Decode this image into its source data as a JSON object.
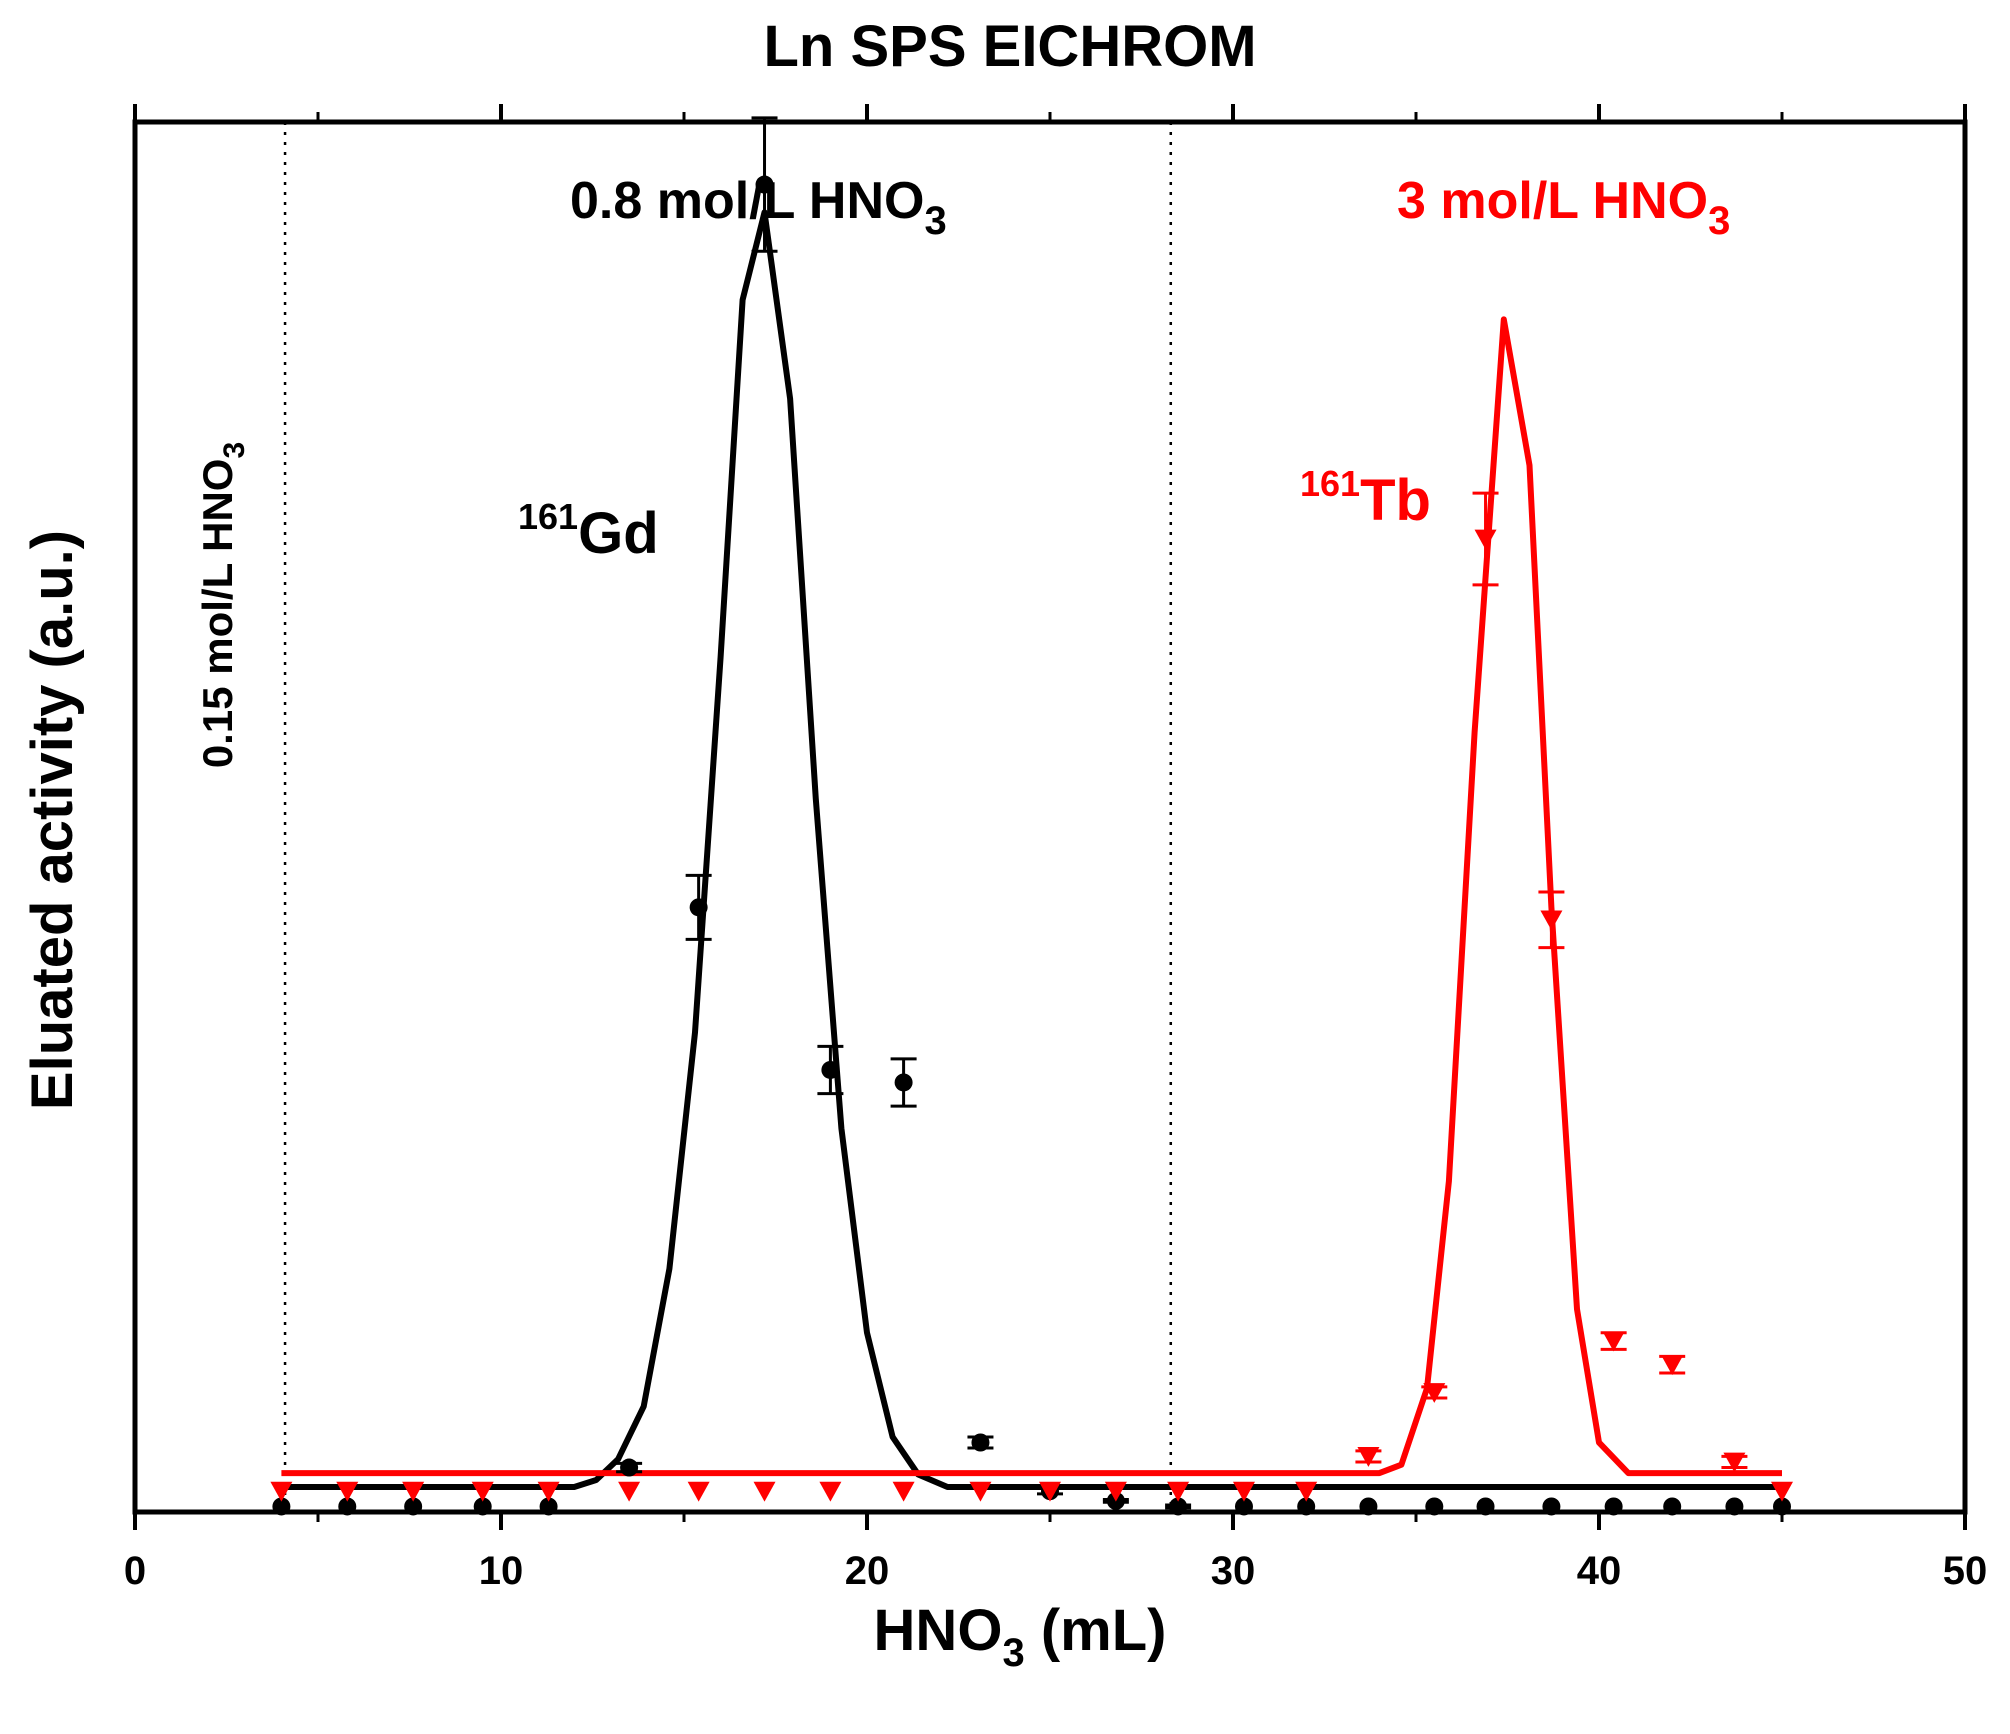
{
  "chart_data": {
    "type": "scatter",
    "title": "Ln SPS EICHROM",
    "xlabel": {
      "main": "HNO",
      "sub": "3",
      "unit": "(mL)"
    },
    "ylabel": "Eluated activity (a.u.)",
    "xlim": [
      0,
      50
    ],
    "ylim": [
      0,
      100
    ],
    "x_ticks": [
      0,
      10,
      20,
      30,
      40,
      50
    ],
    "x_tick_labels": [
      "0",
      "10",
      "20",
      "30",
      "40",
      "50"
    ],
    "y_ticks_visible": false,
    "phase_boundaries": [
      4.1,
      28.3
    ],
    "phase_labels": {
      "left": {
        "text": "0.15 mol/L HNO",
        "sub": "3"
      },
      "middle": {
        "text": "0.8 mol/L  HNO",
        "sub": "3"
      },
      "right": {
        "text": "3 mol/L  HNO",
        "sub": "3"
      }
    },
    "colors": {
      "gd": "#000000",
      "tb": "#ff0000",
      "axis": "#000000"
    },
    "series": [
      {
        "name": "161Gd",
        "label_sup": "161",
        "label_main": "Gd",
        "marker": "circle",
        "color": "#000000",
        "points": [
          {
            "x": 4.0,
            "y": 0.4,
            "err": 0
          },
          {
            "x": 5.8,
            "y": 0.4,
            "err": 0
          },
          {
            "x": 7.6,
            "y": 0.4,
            "err": 0
          },
          {
            "x": 9.5,
            "y": 0.4,
            "err": 0
          },
          {
            "x": 11.3,
            "y": 0.4,
            "err": 0
          },
          {
            "x": 13.5,
            "y": 3.2,
            "err": 0.3
          },
          {
            "x": 15.4,
            "y": 43.5,
            "err": 2.3
          },
          {
            "x": 17.2,
            "y": 95.5,
            "err": 4.8
          },
          {
            "x": 19.0,
            "y": 31.8,
            "err": 1.7
          },
          {
            "x": 21.0,
            "y": 30.9,
            "err": 1.7
          },
          {
            "x": 23.1,
            "y": 5.0,
            "err": 0.4
          },
          {
            "x": 25.0,
            "y": 1.5,
            "err": 0.2
          },
          {
            "x": 26.8,
            "y": 0.8,
            "err": 0.1
          },
          {
            "x": 28.5,
            "y": 0.4,
            "err": 0.1
          },
          {
            "x": 30.3,
            "y": 0.4,
            "err": 0
          },
          {
            "x": 32.0,
            "y": 0.4,
            "err": 0
          },
          {
            "x": 33.7,
            "y": 0.4,
            "err": 0
          },
          {
            "x": 35.5,
            "y": 0.4,
            "err": 0
          },
          {
            "x": 36.9,
            "y": 0.4,
            "err": 0
          },
          {
            "x": 38.7,
            "y": 0.4,
            "err": 0
          },
          {
            "x": 40.4,
            "y": 0.4,
            "err": 0
          },
          {
            "x": 42.0,
            "y": 0.4,
            "err": 0
          },
          {
            "x": 43.7,
            "y": 0.4,
            "err": 0
          },
          {
            "x": 45.0,
            "y": 0.4,
            "err": 0
          }
        ],
        "fit": [
          [
            4.0,
            1.8
          ],
          [
            12.0,
            1.8
          ],
          [
            12.6,
            2.3
          ],
          [
            13.2,
            3.8
          ],
          [
            13.9,
            7.6
          ],
          [
            14.6,
            17.5
          ],
          [
            15.3,
            34.5
          ],
          [
            16.0,
            61.5
          ],
          [
            16.6,
            87.2
          ],
          [
            17.2,
            93.5
          ],
          [
            17.9,
            80.1
          ],
          [
            18.6,
            51.3
          ],
          [
            19.3,
            27.6
          ],
          [
            20.0,
            12.9
          ],
          [
            20.7,
            5.4
          ],
          [
            21.4,
            2.7
          ],
          [
            22.2,
            1.8
          ],
          [
            45.0,
            1.8
          ]
        ]
      },
      {
        "name": "161Tb",
        "label_sup": "161",
        "label_main": "Tb",
        "marker": "triangle-down",
        "color": "#ff0000",
        "points": [
          {
            "x": 4.0,
            "y": 1.5,
            "err": 0
          },
          {
            "x": 5.8,
            "y": 1.5,
            "err": 0
          },
          {
            "x": 7.6,
            "y": 1.5,
            "err": 0
          },
          {
            "x": 9.5,
            "y": 1.5,
            "err": 0
          },
          {
            "x": 11.3,
            "y": 1.5,
            "err": 0
          },
          {
            "x": 13.5,
            "y": 1.5,
            "err": 0
          },
          {
            "x": 15.4,
            "y": 1.5,
            "err": 0
          },
          {
            "x": 17.2,
            "y": 1.5,
            "err": 0
          },
          {
            "x": 19.0,
            "y": 1.5,
            "err": 0
          },
          {
            "x": 21.0,
            "y": 1.5,
            "err": 0
          },
          {
            "x": 23.1,
            "y": 1.5,
            "err": 0
          },
          {
            "x": 25.0,
            "y": 1.5,
            "err": 0
          },
          {
            "x": 26.8,
            "y": 1.5,
            "err": 0
          },
          {
            "x": 28.5,
            "y": 1.5,
            "err": 0
          },
          {
            "x": 30.3,
            "y": 1.5,
            "err": 0
          },
          {
            "x": 32.0,
            "y": 1.5,
            "err": 0
          },
          {
            "x": 33.7,
            "y": 4.0,
            "err": 0.4
          },
          {
            "x": 35.5,
            "y": 8.6,
            "err": 0.4
          },
          {
            "x": 36.9,
            "y": 70.0,
            "err": 3.3
          },
          {
            "x": 38.7,
            "y": 42.6,
            "err": 2.0
          },
          {
            "x": 40.4,
            "y": 12.3,
            "err": 0.6
          },
          {
            "x": 42.0,
            "y": 10.6,
            "err": 0.6
          },
          {
            "x": 43.7,
            "y": 3.6,
            "err": 0.4
          },
          {
            "x": 45.0,
            "y": 1.5,
            "err": 0
          }
        ],
        "fit": [
          [
            4.0,
            2.8
          ],
          [
            34.0,
            2.8
          ],
          [
            34.6,
            3.4
          ],
          [
            35.3,
            8.9
          ],
          [
            35.9,
            23.8
          ],
          [
            36.6,
            56.1
          ],
          [
            37.4,
            85.8
          ],
          [
            38.1,
            75.3
          ],
          [
            38.7,
            43.5
          ],
          [
            39.4,
            14.6
          ],
          [
            40.0,
            5.0
          ],
          [
            40.8,
            2.8
          ],
          [
            45.0,
            2.8
          ]
        ]
      }
    ]
  }
}
